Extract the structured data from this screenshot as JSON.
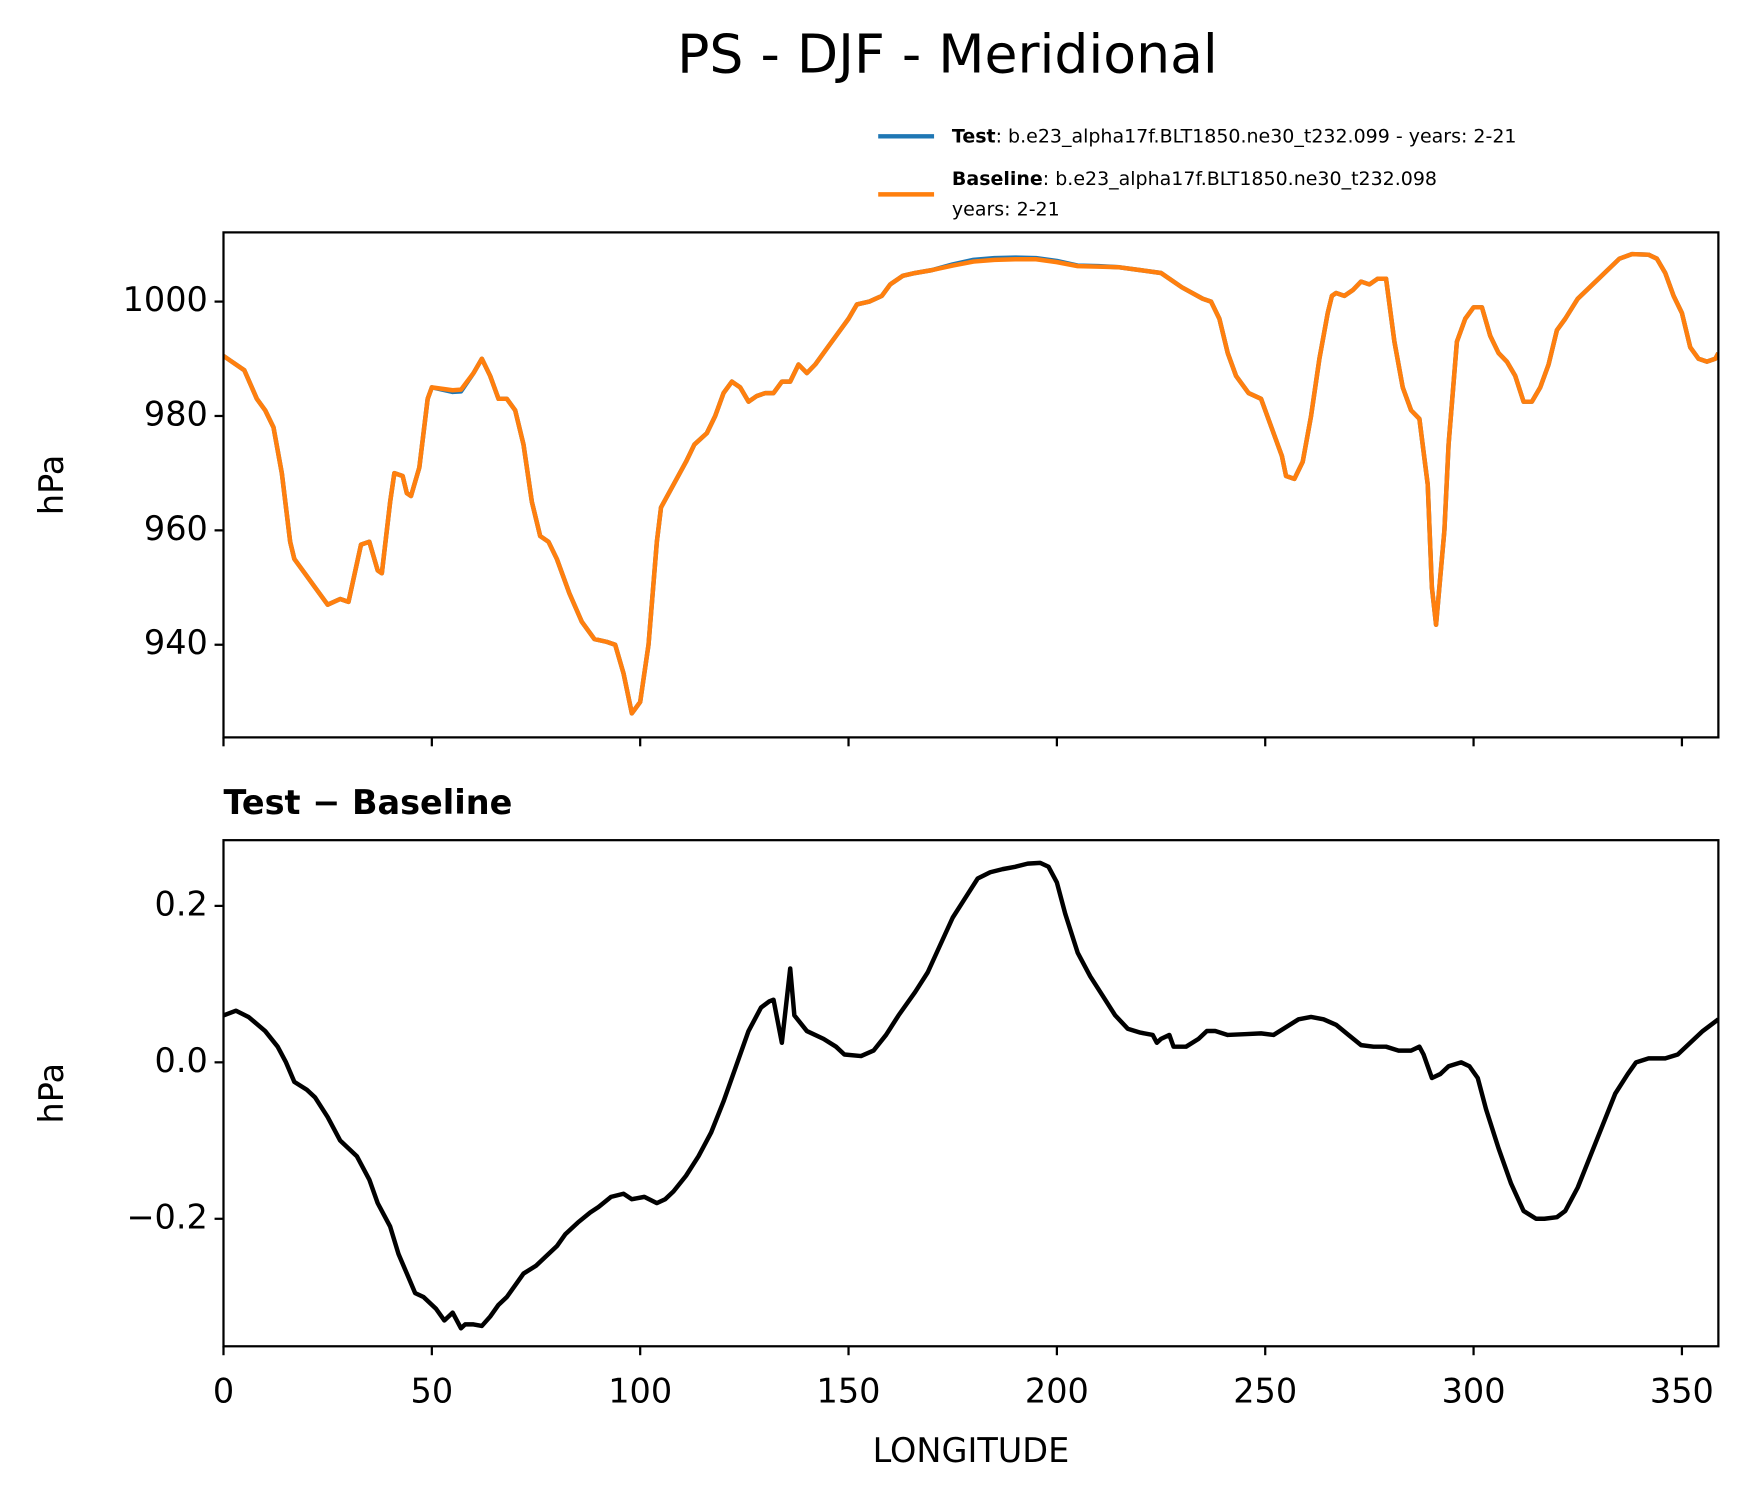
{
  "title": "PS - DJF - Meridional",
  "chart_data": [
    {
      "type": "line",
      "ylabel": "hPa",
      "xlim": [
        0,
        358.75
      ],
      "xticks": [
        0,
        50,
        100,
        150,
        200,
        250,
        300,
        350
      ],
      "show_xticklabels": false,
      "ylim": [
        923.8,
        1012.1
      ],
      "yticks": [
        940,
        960,
        980,
        1000
      ],
      "x": [
        0,
        5,
        8,
        10,
        12,
        14,
        16,
        17,
        20,
        22,
        25,
        28,
        30,
        33,
        35,
        37,
        38,
        40,
        41,
        43,
        44,
        45,
        47,
        49,
        50,
        55,
        57,
        60,
        62,
        64,
        66,
        68,
        70,
        72,
        74,
        76,
        78,
        80,
        83,
        86,
        89,
        92,
        94,
        96,
        98,
        100,
        102,
        104,
        105,
        108,
        111,
        113,
        116,
        118,
        120,
        122,
        124,
        126,
        128,
        130,
        132,
        134,
        136,
        138,
        140,
        142,
        145,
        148,
        150,
        152,
        155,
        158,
        160,
        163,
        166,
        170,
        175,
        180,
        185,
        190,
        195,
        200,
        205,
        210,
        215,
        220,
        225,
        230,
        235,
        237,
        239,
        241,
        243,
        246,
        249,
        252,
        254,
        255,
        257,
        259,
        261,
        263,
        265,
        266,
        267,
        269,
        271,
        273,
        275,
        277,
        279,
        281,
        283,
        285,
        287,
        289,
        290,
        291,
        293,
        294,
        296,
        298,
        300,
        302,
        304,
        306,
        308,
        310,
        312,
        314,
        316,
        318,
        320,
        322,
        325,
        330,
        335,
        338,
        342,
        344,
        346,
        348,
        350,
        352,
        354,
        356,
        358,
        358.75
      ],
      "series": [
        {
          "name": "Test",
          "description": [
            ": b.e23_alpha17f.BLT1850.ne30_t232.099 - years: 2-21"
          ],
          "color": "#1f77b4",
          "values": [
            990.5,
            988,
            983,
            981,
            978,
            970,
            958,
            955,
            952,
            950,
            947,
            948,
            947.5,
            957.5,
            958,
            953,
            952.5,
            965,
            970,
            969.5,
            966.5,
            966,
            971,
            983,
            985,
            984.2,
            984.3,
            987.5,
            990,
            987,
            983,
            983,
            981,
            975,
            965,
            959,
            958,
            955,
            949,
            944,
            941,
            940.5,
            940,
            935,
            928,
            930,
            940,
            958,
            964,
            968,
            972,
            975,
            977,
            980,
            984,
            986,
            985,
            982.5,
            983.5,
            984,
            984,
            986,
            986,
            989,
            987.5,
            989,
            992,
            995,
            997,
            999.5,
            1000,
            1001,
            1003,
            1004.5,
            1005,
            1005.5,
            1006.5,
            1007.3,
            1007.6,
            1007.7,
            1007.6,
            1007.1,
            1006.3,
            1006.2,
            1006,
            1005.5,
            1005,
            1002.5,
            1000.5,
            1000,
            997,
            991,
            987,
            984,
            983,
            977,
            973,
            969.5,
            969,
            972,
            980,
            990,
            998,
            1001,
            1001.5,
            1001,
            1002,
            1003.5,
            1003,
            1004,
            1004,
            993,
            985,
            981,
            979.5,
            968,
            950,
            943.5,
            960,
            975,
            993,
            997,
            999,
            999,
            994,
            991,
            989.5,
            987,
            982.5,
            982.5,
            985,
            989,
            995,
            997,
            1000.5,
            1004,
            1007.5,
            1008.3,
            1008.2,
            1007.5,
            1005,
            1001,
            998,
            992,
            990,
            989.5,
            990,
            991
          ]
        },
        {
          "name": "Baseline",
          "description": [
            ": b.e23_alpha17f.BLT1850.ne30_t232.098",
            "years: 2-21"
          ],
          "color": "#ff7f0e",
          "values": [
            990.5,
            988,
            983,
            981,
            978,
            970,
            958,
            955,
            952,
            950,
            947,
            948,
            947.5,
            957.5,
            958,
            953,
            952.5,
            965,
            970,
            969.5,
            966.5,
            966,
            971,
            983,
            985,
            984.5,
            984.6,
            987.5,
            990,
            987,
            983,
            983,
            981,
            975,
            965,
            959,
            958,
            955,
            949,
            944,
            941,
            940.5,
            940,
            935,
            928,
            930,
            940,
            958,
            964,
            968,
            972,
            975,
            977,
            980,
            984,
            986,
            985,
            982.5,
            983.5,
            984,
            984,
            986,
            986,
            989,
            987.5,
            989,
            992,
            995,
            997,
            999.5,
            1000,
            1001,
            1003,
            1004.5,
            1005,
            1005.5,
            1006.3,
            1007,
            1007.3,
            1007.4,
            1007.4,
            1006.9,
            1006.2,
            1006.1,
            1006,
            1005.5,
            1005,
            1002.5,
            1000.5,
            1000,
            997,
            991,
            987,
            984,
            983,
            977,
            973,
            969.5,
            969,
            972,
            980,
            990,
            998,
            1001,
            1001.5,
            1001,
            1002,
            1003.5,
            1003,
            1004,
            1004,
            993,
            985,
            981,
            979.5,
            968,
            950,
            943.5,
            960,
            975,
            993,
            997,
            999,
            999,
            994,
            991,
            989.5,
            987,
            982.5,
            982.5,
            985,
            989,
            995,
            997,
            1000.5,
            1004,
            1007.5,
            1008.3,
            1008.2,
            1007.5,
            1005,
            1001,
            998,
            992,
            990,
            989.5,
            990,
            991
          ]
        }
      ],
      "legend": "upper right"
    },
    {
      "type": "line",
      "title": "Test − Baseline",
      "xlabel": "LONGITUDE",
      "ylabel": "hPa",
      "xlim": [
        0,
        358.75
      ],
      "xticks": [
        0,
        50,
        100,
        150,
        200,
        250,
        300,
        350
      ],
      "show_xticklabels": true,
      "ylim": [
        -0.363,
        0.284
      ],
      "yticks": [
        {
          "value": -0.2,
          "label": "−0.2"
        },
        {
          "value": 0,
          "label": "0.0"
        },
        {
          "value": 0.2,
          "label": "0.2"
        }
      ],
      "x": [
        0,
        3,
        6,
        10,
        13,
        15,
        17,
        20,
        22,
        25,
        28,
        30,
        32,
        35,
        37,
        40,
        42,
        44,
        46,
        48,
        51,
        53,
        55,
        57,
        58,
        60,
        62,
        64,
        66,
        68,
        70,
        72,
        75,
        77,
        80,
        82,
        85,
        88,
        90,
        93,
        96,
        98,
        101,
        104,
        106,
        108,
        111,
        114,
        117,
        120,
        123,
        126,
        129,
        131,
        132,
        134,
        136,
        137,
        140,
        144,
        147,
        149,
        153,
        156,
        159,
        162,
        166,
        169,
        172,
        175,
        178,
        181,
        184,
        187,
        190,
        193,
        196,
        198,
        200,
        202,
        205,
        208,
        211,
        214,
        217,
        220,
        223,
        224,
        225,
        227,
        228,
        231,
        234,
        236,
        238,
        241,
        245,
        249,
        252,
        255,
        258,
        261,
        264,
        267,
        270,
        273,
        276,
        279,
        282,
        285,
        287,
        288,
        290,
        292,
        294,
        297,
        299,
        301,
        303,
        306,
        309,
        312,
        315,
        317,
        320,
        322,
        325,
        328,
        331,
        334,
        337,
        339,
        342,
        346,
        349,
        352,
        355,
        358.75
      ],
      "series": [
        {
          "name": "Test − Baseline",
          "color": "#000000",
          "values": [
            0.06,
            0.066,
            0.058,
            0.04,
            0.02,
            0.0,
            -0.025,
            -0.035,
            -0.045,
            -0.07,
            -0.1,
            -0.11,
            -0.12,
            -0.15,
            -0.18,
            -0.21,
            -0.245,
            -0.27,
            -0.295,
            -0.3,
            -0.315,
            -0.33,
            -0.32,
            -0.34,
            -0.335,
            -0.335,
            -0.337,
            -0.325,
            -0.31,
            -0.3,
            -0.285,
            -0.27,
            -0.26,
            -0.25,
            -0.235,
            -0.22,
            -0.205,
            -0.192,
            -0.185,
            -0.172,
            -0.168,
            -0.175,
            -0.172,
            -0.18,
            -0.175,
            -0.165,
            -0.145,
            -0.12,
            -0.09,
            -0.05,
            -0.005,
            0.04,
            0.07,
            0.078,
            0.08,
            0.025,
            0.12,
            0.06,
            0.04,
            0.03,
            0.02,
            0.01,
            0.008,
            0.015,
            0.035,
            0.06,
            0.09,
            0.115,
            0.15,
            0.185,
            0.21,
            0.235,
            0.243,
            0.247,
            0.25,
            0.254,
            0.255,
            0.25,
            0.23,
            0.19,
            0.14,
            0.11,
            0.085,
            0.06,
            0.043,
            0.038,
            0.035,
            0.025,
            0.03,
            0.035,
            0.02,
            0.02,
            0.03,
            0.04,
            0.04,
            0.035,
            0.036,
            0.037,
            0.035,
            0.045,
            0.055,
            0.058,
            0.055,
            0.048,
            0.035,
            0.022,
            0.02,
            0.02,
            0.015,
            0.015,
            0.02,
            0.01,
            -0.02,
            -0.015,
            -0.005,
            0.0,
            -0.005,
            -0.02,
            -0.06,
            -0.11,
            -0.155,
            -0.19,
            -0.2,
            -0.2,
            -0.198,
            -0.19,
            -0.16,
            -0.12,
            -0.08,
            -0.04,
            -0.015,
            0.0,
            0.005,
            0.005,
            0.01,
            0.025,
            0.04,
            0.055
          ]
        }
      ]
    }
  ]
}
